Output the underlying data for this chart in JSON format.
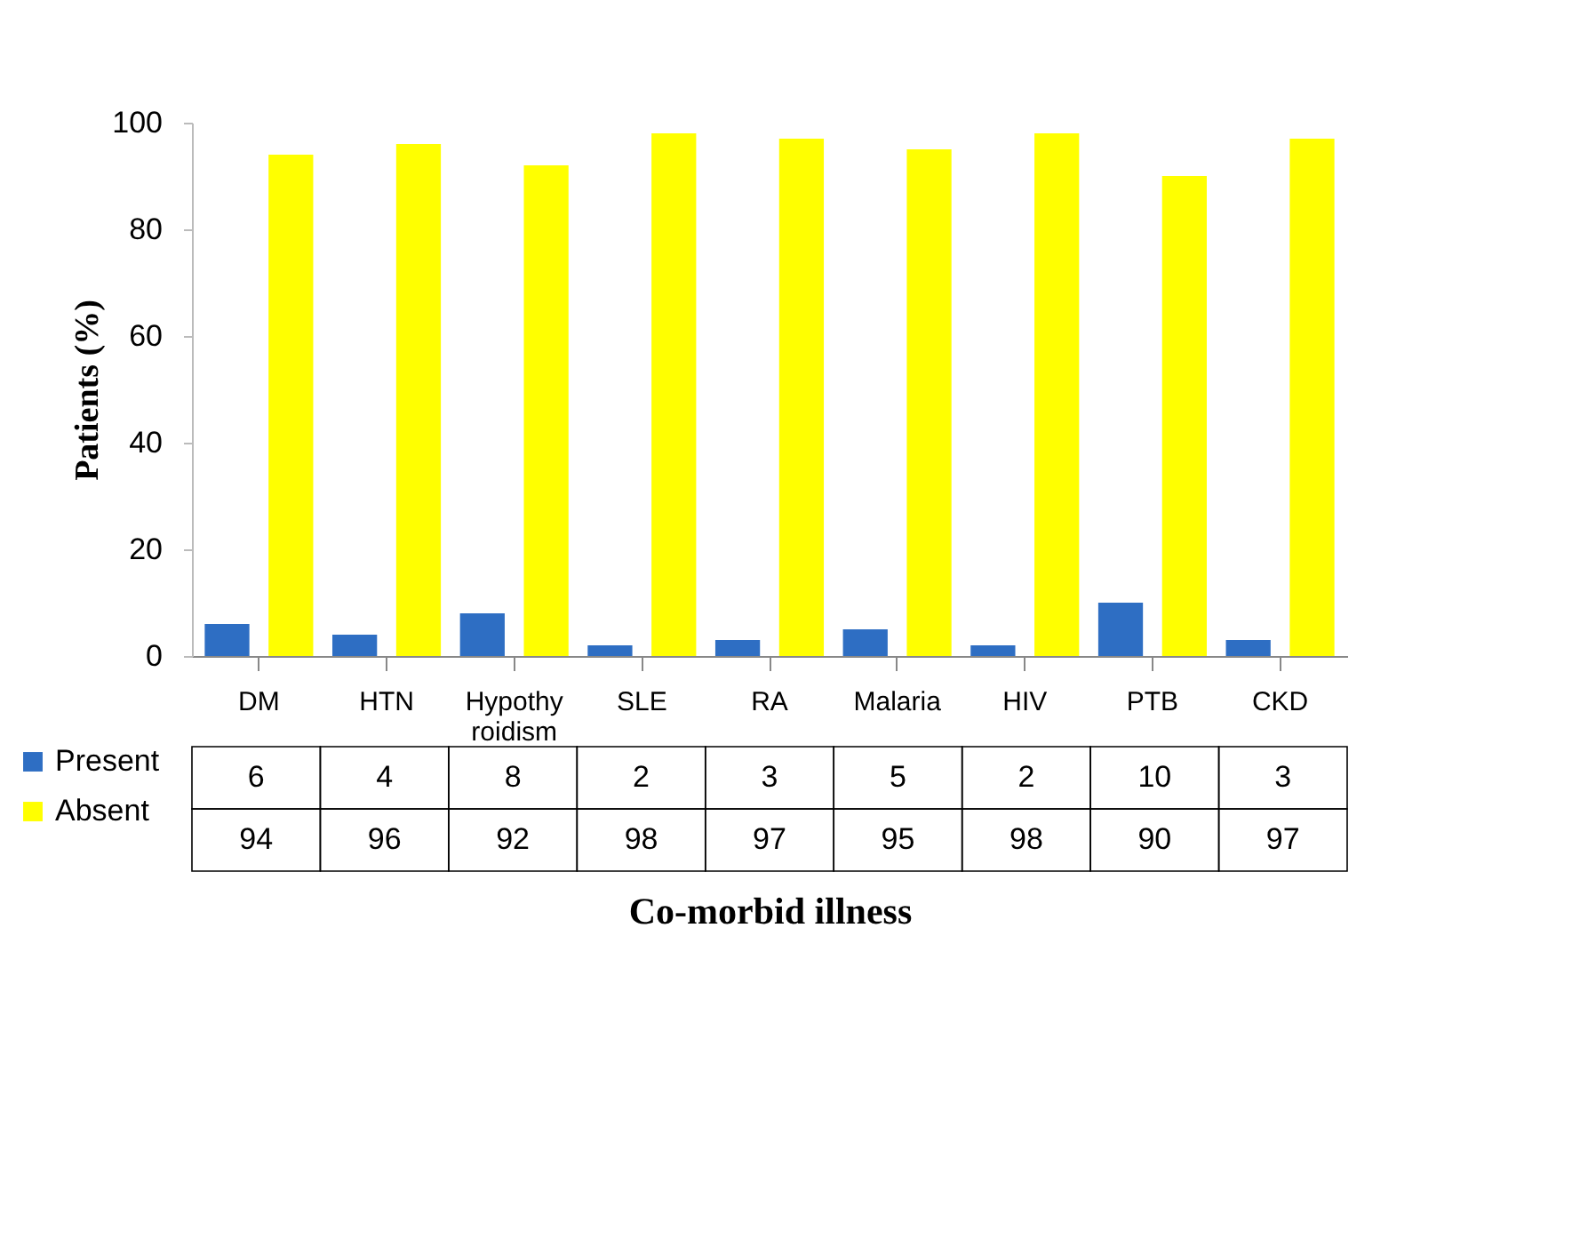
{
  "chart_data": {
    "type": "bar",
    "xlabel": "Co-morbid illness",
    "ylabel": "Patients (%)",
    "categories": [
      "DM",
      "HTN",
      "Hypothyroidism",
      "SLE",
      "RA",
      "Malaria",
      "HIV",
      "PTB",
      "CKD"
    ],
    "series": [
      {
        "name": "Present",
        "color": "#2e6ec3",
        "values": [
          6,
          4,
          8,
          2,
          3,
          5,
          2,
          10,
          3
        ]
      },
      {
        "name": "Absent",
        "color": "#ffff00",
        "values": [
          94,
          96,
          92,
          98,
          97,
          95,
          98,
          90,
          97
        ]
      }
    ],
    "ylim": [
      0,
      100
    ],
    "yticks": [
      0,
      20,
      40,
      60,
      80,
      100
    ],
    "grid": false,
    "legend": "bottom left",
    "data_labels": true
  }
}
